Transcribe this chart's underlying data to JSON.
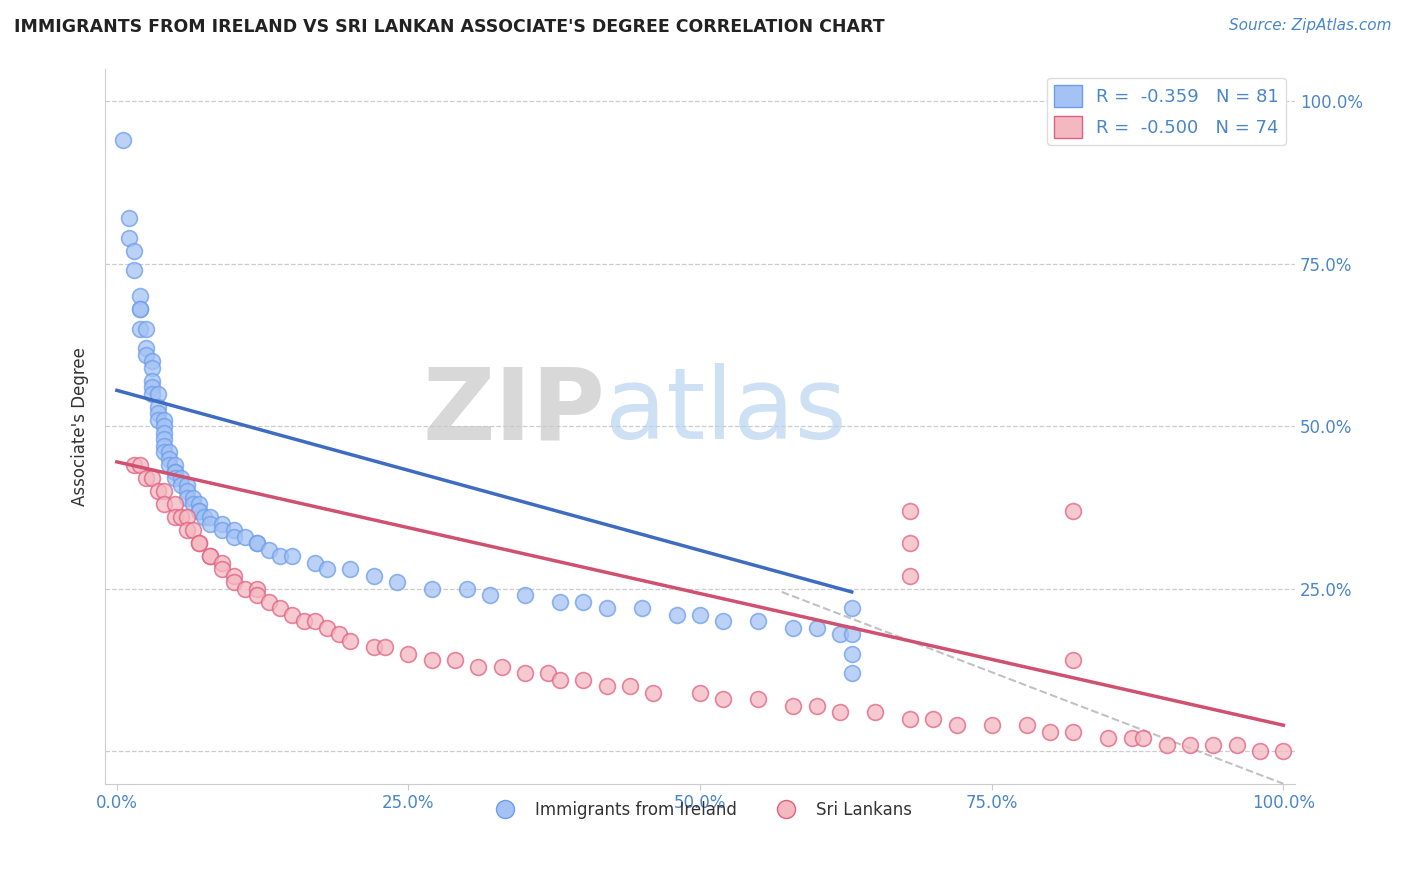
{
  "title": "IMMIGRANTS FROM IRELAND VS SRI LANKAN ASSOCIATE'S DEGREE CORRELATION CHART",
  "source_text": "Source: ZipAtlas.com",
  "ylabel": "Associate's Degree",
  "legend_label1": "Immigrants from Ireland",
  "legend_label2": "Sri Lankans",
  "r1": -0.359,
  "n1": 81,
  "r2": -0.5,
  "n2": 74,
  "color_blue": "#a4c2f4",
  "color_pink": "#f4b8c1",
  "edge_blue": "#6d9eeb",
  "edge_pink": "#e06080",
  "line_blue": "#3d6cc0",
  "line_pink": "#d05070",
  "dash_color": "#bbbbbb",
  "background_color": "#ffffff",
  "grid_color": "#cccccc",
  "tick_color": "#4a86c8",
  "watermark_zip": "ZIP",
  "watermark_atlas": "atlas",
  "blue_x": [
    0.005,
    0.01,
    0.01,
    0.015,
    0.015,
    0.02,
    0.02,
    0.02,
    0.02,
    0.025,
    0.025,
    0.025,
    0.03,
    0.03,
    0.03,
    0.03,
    0.03,
    0.035,
    0.035,
    0.035,
    0.035,
    0.04,
    0.04,
    0.04,
    0.04,
    0.04,
    0.04,
    0.045,
    0.045,
    0.045,
    0.05,
    0.05,
    0.05,
    0.05,
    0.055,
    0.055,
    0.06,
    0.06,
    0.06,
    0.065,
    0.065,
    0.07,
    0.07,
    0.07,
    0.075,
    0.08,
    0.08,
    0.09,
    0.09,
    0.1,
    0.1,
    0.11,
    0.12,
    0.12,
    0.13,
    0.14,
    0.15,
    0.17,
    0.18,
    0.2,
    0.22,
    0.24,
    0.27,
    0.3,
    0.32,
    0.35,
    0.38,
    0.4,
    0.42,
    0.45,
    0.48,
    0.5,
    0.52,
    0.55,
    0.58,
    0.6,
    0.62,
    0.63,
    0.63,
    0.63,
    0.63
  ],
  "blue_y": [
    0.94,
    0.82,
    0.79,
    0.77,
    0.74,
    0.7,
    0.68,
    0.68,
    0.65,
    0.65,
    0.62,
    0.61,
    0.6,
    0.59,
    0.57,
    0.56,
    0.55,
    0.55,
    0.53,
    0.52,
    0.51,
    0.51,
    0.5,
    0.49,
    0.48,
    0.47,
    0.46,
    0.46,
    0.45,
    0.44,
    0.44,
    0.43,
    0.43,
    0.42,
    0.42,
    0.41,
    0.41,
    0.4,
    0.39,
    0.39,
    0.38,
    0.38,
    0.37,
    0.37,
    0.36,
    0.36,
    0.35,
    0.35,
    0.34,
    0.34,
    0.33,
    0.33,
    0.32,
    0.32,
    0.31,
    0.3,
    0.3,
    0.29,
    0.28,
    0.28,
    0.27,
    0.26,
    0.25,
    0.25,
    0.24,
    0.24,
    0.23,
    0.23,
    0.22,
    0.22,
    0.21,
    0.21,
    0.2,
    0.2,
    0.19,
    0.19,
    0.18,
    0.18,
    0.22,
    0.15,
    0.12
  ],
  "pink_x": [
    0.015,
    0.02,
    0.025,
    0.03,
    0.035,
    0.04,
    0.04,
    0.05,
    0.05,
    0.055,
    0.06,
    0.06,
    0.065,
    0.07,
    0.07,
    0.08,
    0.08,
    0.09,
    0.09,
    0.1,
    0.1,
    0.11,
    0.12,
    0.12,
    0.13,
    0.14,
    0.15,
    0.16,
    0.17,
    0.18,
    0.19,
    0.2,
    0.22,
    0.23,
    0.25,
    0.27,
    0.29,
    0.31,
    0.33,
    0.35,
    0.37,
    0.38,
    0.4,
    0.42,
    0.44,
    0.46,
    0.5,
    0.52,
    0.55,
    0.58,
    0.6,
    0.62,
    0.65,
    0.68,
    0.7,
    0.72,
    0.75,
    0.78,
    0.8,
    0.82,
    0.85,
    0.87,
    0.88,
    0.9,
    0.92,
    0.94,
    0.96,
    0.98,
    1.0,
    0.68,
    0.68,
    0.68,
    0.82,
    0.82
  ],
  "pink_y": [
    0.44,
    0.44,
    0.42,
    0.42,
    0.4,
    0.4,
    0.38,
    0.38,
    0.36,
    0.36,
    0.36,
    0.34,
    0.34,
    0.32,
    0.32,
    0.3,
    0.3,
    0.29,
    0.28,
    0.27,
    0.26,
    0.25,
    0.25,
    0.24,
    0.23,
    0.22,
    0.21,
    0.2,
    0.2,
    0.19,
    0.18,
    0.17,
    0.16,
    0.16,
    0.15,
    0.14,
    0.14,
    0.13,
    0.13,
    0.12,
    0.12,
    0.11,
    0.11,
    0.1,
    0.1,
    0.09,
    0.09,
    0.08,
    0.08,
    0.07,
    0.07,
    0.06,
    0.06,
    0.05,
    0.05,
    0.04,
    0.04,
    0.04,
    0.03,
    0.03,
    0.02,
    0.02,
    0.02,
    0.01,
    0.01,
    0.01,
    0.01,
    0.0,
    0.0,
    0.37,
    0.32,
    0.27,
    0.37,
    0.14
  ],
  "blue_line_x": [
    0.0,
    0.63
  ],
  "blue_line_y": [
    0.555,
    0.245
  ],
  "pink_line_x": [
    0.0,
    1.0
  ],
  "pink_line_y": [
    0.445,
    0.04
  ],
  "dash_line_x": [
    0.57,
    1.0
  ],
  "dash_line_y": [
    0.245,
    -0.05
  ],
  "xlim": [
    0.0,
    1.0
  ],
  "ylim": [
    -0.05,
    1.05
  ],
  "x_ticks": [
    0.0,
    0.25,
    0.5,
    0.75,
    1.0
  ],
  "y_ticks": [
    0.0,
    0.25,
    0.5,
    0.75,
    1.0
  ],
  "x_tick_labels": [
    "0.0%",
    "25.0%",
    "50.0%",
    "75.0%",
    "100.0%"
  ],
  "y_tick_labels_right": [
    "",
    "25.0%",
    "50.0%",
    "75.0%",
    "100.0%"
  ]
}
